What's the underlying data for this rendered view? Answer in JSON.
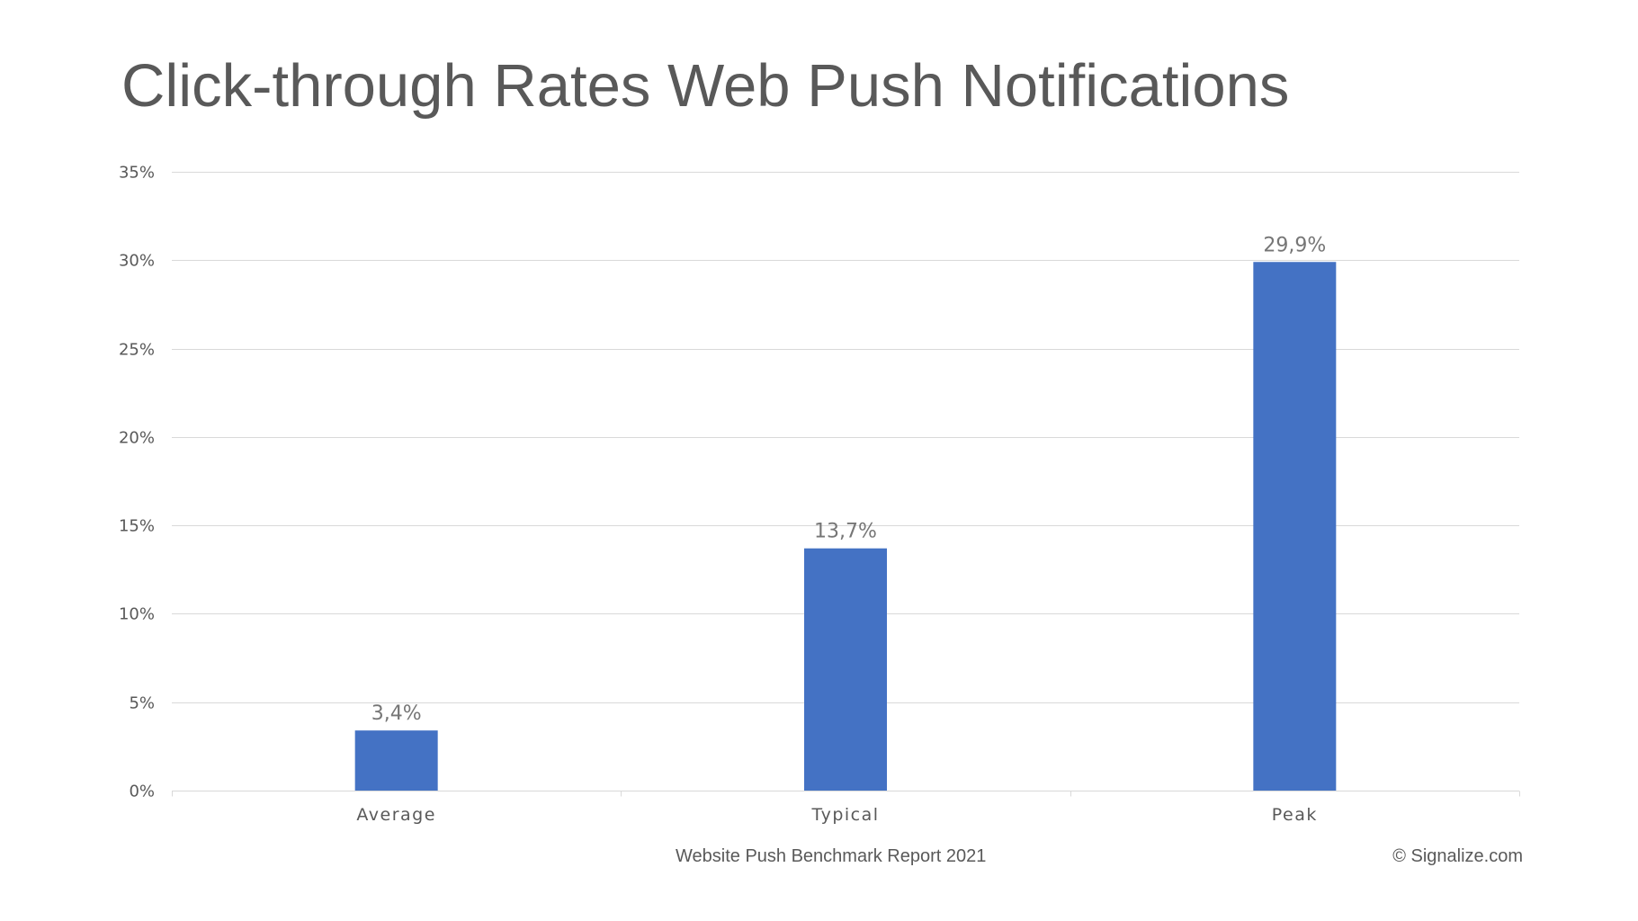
{
  "footer": {
    "source": "Website Push Benchmark Report 2021",
    "copyright": "© Signalize.com"
  },
  "colors": {
    "bar": "#4472C4",
    "grid": "#D9D9D9",
    "text": "#595959"
  },
  "chart_data": {
    "type": "bar",
    "title": "Click-through Rates Web Push Notifications",
    "xlabel": "",
    "ylabel": "",
    "categories": [
      "Average",
      "Typical",
      "Peak"
    ],
    "values": [
      3.4,
      13.7,
      29.9
    ],
    "data_labels": [
      "3,4%",
      "13,7%",
      "29,9%"
    ],
    "ylim": [
      0,
      35
    ],
    "yticks": [
      0,
      5,
      10,
      15,
      20,
      25,
      30,
      35
    ],
    "ytick_labels": [
      "0%",
      "5%",
      "10%",
      "15%",
      "20%",
      "25%",
      "30%",
      "35%"
    ],
    "grid": true,
    "legend": "none"
  }
}
